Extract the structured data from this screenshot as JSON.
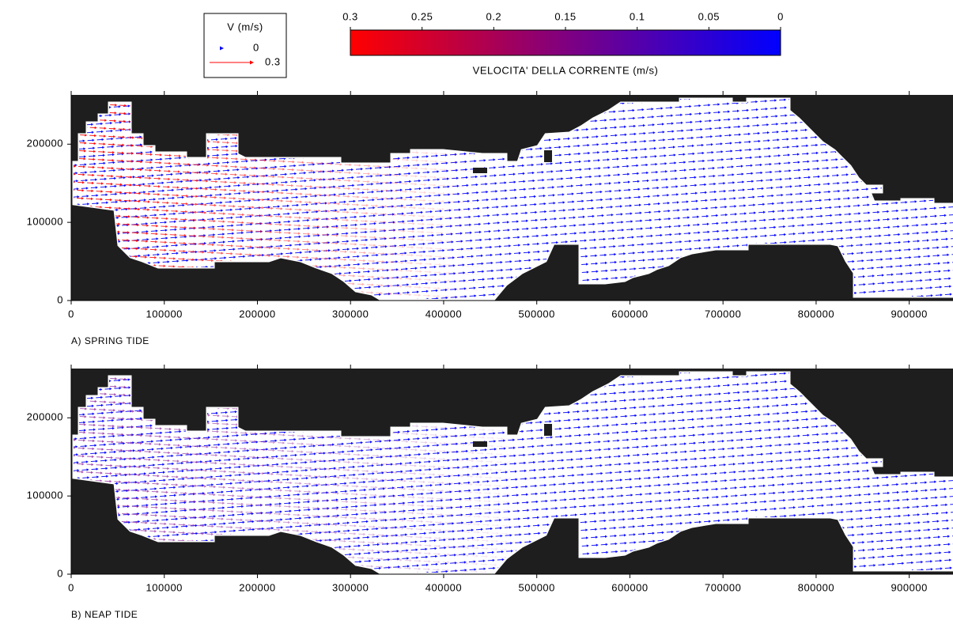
{
  "legend": {
    "title": "V (m/s)",
    "entries": [
      0,
      0.3
    ],
    "colors": [
      "#0000ff",
      "#ff0000"
    ]
  },
  "colorbar": {
    "label": "VELOCITA' DELLA CORRENTE (m/s)",
    "range": [
      0,
      0.3
    ],
    "ticks": [
      0.3,
      0.25,
      0.2,
      0.15,
      0.1,
      0.05,
      0
    ],
    "colors": [
      "#0000ff",
      "#ff0000"
    ]
  },
  "chart_data": [
    {
      "type": "vector",
      "caption": "A) SPRING TIDE",
      "xlim": [
        0,
        947000
      ],
      "xticks": [
        0,
        100000,
        200000,
        300000,
        400000,
        500000,
        600000,
        700000,
        800000,
        900000
      ],
      "ylim": [
        0,
        263000
      ],
      "yticks": [
        0,
        100000,
        200000
      ],
      "colors": [
        "#ff0000",
        "#0000ff"
      ]
    },
    {
      "type": "vector",
      "caption": "B) NEAP TIDE",
      "xlim": [
        0,
        947000
      ],
      "xticks": [
        0,
        100000,
        200000,
        300000,
        400000,
        500000,
        600000,
        700000,
        800000,
        900000
      ],
      "ylim": [
        0,
        263000
      ],
      "yticks": [
        0,
        100000,
        200000
      ],
      "colors": [
        "#8a1a9a",
        "#0000ff"
      ]
    }
  ]
}
